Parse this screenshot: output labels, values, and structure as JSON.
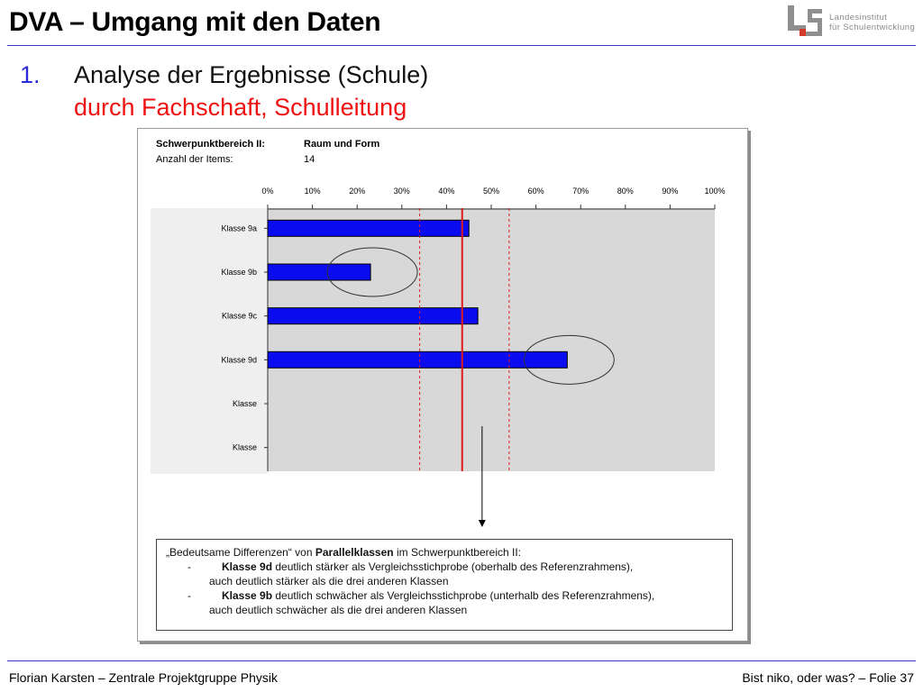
{
  "slide": {
    "title": "DVA – Umgang mit den Daten",
    "point_number": "1.",
    "point_line1": "Analyse der Ergebnisse (Schule)",
    "point_line2": "durch Fachschaft, Schulleitung",
    "logo_line1": "Landesinstitut",
    "logo_line2": "für Schulentwicklung",
    "footer_left": "Florian Karsten – Zentrale Projektgruppe Physik",
    "footer_right": "Bist niko, oder was? – Folie 37"
  },
  "colors": {
    "accent_blue": "#2b2bd6",
    "highlight_red": "#ee1111",
    "bar_blue": "#0b0bf0",
    "plot_bg": "#d8d8d8",
    "reference_line": "#e01a1a"
  },
  "chart_header": {
    "area_label": "Schwerpunktbereich II:",
    "area_value": "Raum und Form",
    "items_label": "Anzahl der Items:",
    "items_value": "14"
  },
  "chart_data": {
    "type": "bar",
    "orientation": "horizontal",
    "title": "",
    "xlabel": "",
    "ylabel": "",
    "xlim": [
      0,
      100
    ],
    "x_ticks": [
      0,
      10,
      20,
      30,
      40,
      50,
      60,
      70,
      80,
      90,
      100
    ],
    "x_tick_labels": [
      "0%",
      "10%",
      "20%",
      "30%",
      "40%",
      "50%",
      "60%",
      "70%",
      "80%",
      "90%",
      "100%"
    ],
    "categories": [
      "Klasse 9a",
      "Klasse 9b",
      "Klasse 9c",
      "Klasse 9d",
      "Klasse",
      "Klasse"
    ],
    "values": [
      45,
      23,
      47,
      67,
      null,
      null
    ],
    "reference_line": 43.5,
    "reference_band": [
      34,
      54
    ],
    "highlighted_categories": [
      "Klasse 9b",
      "Klasse 9d"
    ],
    "grid": false,
    "legend": "none"
  },
  "note": {
    "l1_a": "„Bedeutsame Differenzen“ von ",
    "l1_b": "Parallelklassen",
    "l1_c": " im Schwerpunktbereich II:",
    "dash": "-",
    "l2_b": "Klasse 9d",
    "l2_c": " deutlich stärker als Vergleichsstichprobe (oberhalb des Referenzrahmens),",
    "l3": "auch deutlich stärker als die drei anderen Klassen",
    "l4_b": "Klasse 9b",
    "l4_c": " deutlich schwächer als Vergleichsstichprobe (unterhalb des Referenzrahmens),",
    "l5": "auch deutlich schwächer als die drei anderen Klassen"
  }
}
